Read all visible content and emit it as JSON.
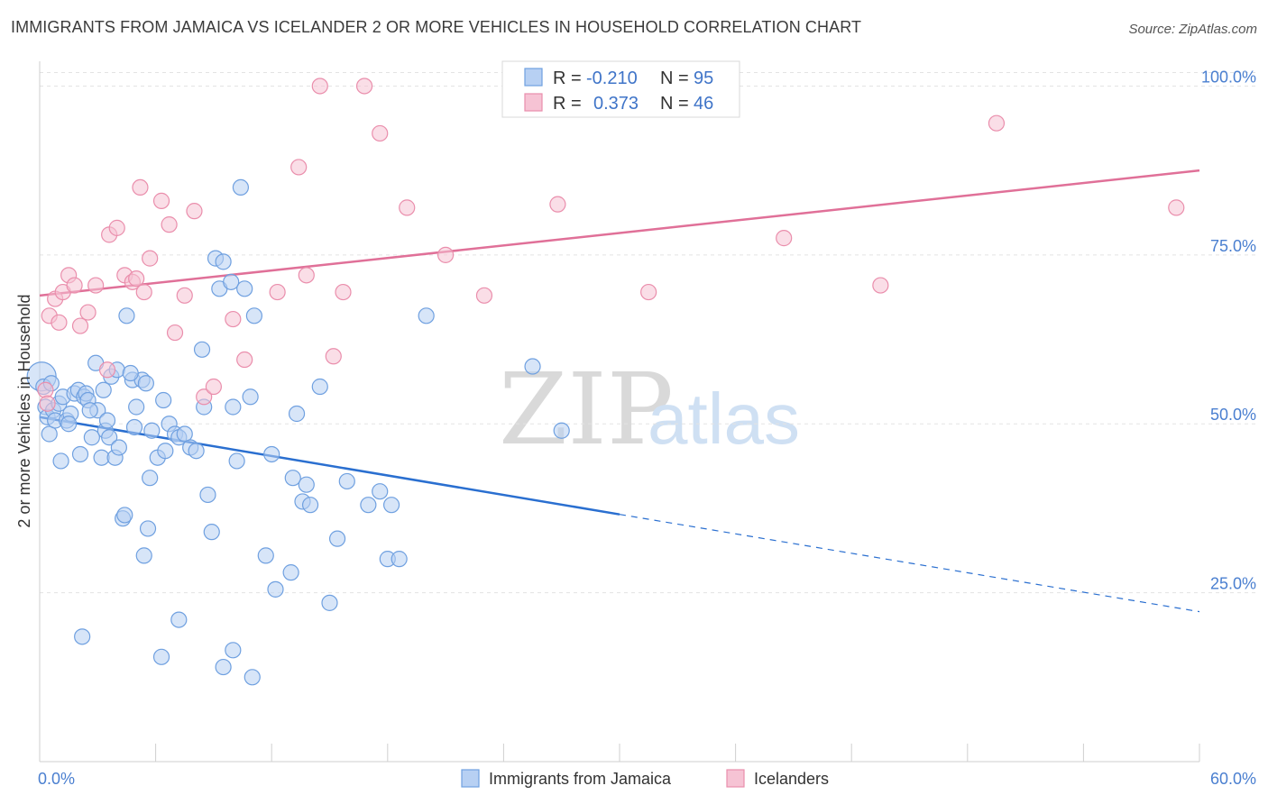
{
  "header": {
    "title": "IMMIGRANTS FROM JAMAICA VS ICELANDER 2 OR MORE VEHICLES IN HOUSEHOLD CORRELATION CHART",
    "source": "Source: ZipAtlas.com"
  },
  "watermark": {
    "zip": "ZIP",
    "atlas": "atlas"
  },
  "chart_data": {
    "type": "scatter",
    "title": "IMMIGRANTS FROM JAMAICA VS ICELANDER 2 OR MORE VEHICLES IN HOUSEHOLD CORRELATION CHART",
    "ylabel": "2 or more Vehicles in Household",
    "xlim": [
      0,
      60
    ],
    "ylim": [
      0,
      105
    ],
    "x_tick_labels": [
      "0.0%",
      "60.0%"
    ],
    "y_ticks": [
      25,
      50,
      75,
      100
    ],
    "y_tick_labels": [
      "25.0%",
      "50.0%",
      "75.0%",
      "100.0%"
    ],
    "grid": true,
    "legend_position": "top-center",
    "series": [
      {
        "name": "Immigrants from Jamaica",
        "color": "#6fa0e0",
        "fill": "#b7d0f3",
        "line_color": "#2a6fd0",
        "R": "-0.210",
        "N": "95",
        "trend": {
          "x": [
            0,
            30,
            60
          ],
          "y": [
            51,
            36.6,
            22.2
          ],
          "solid_until": 30
        },
        "points": [
          [
            0.1,
            57
          ],
          [
            0.2,
            55.5
          ],
          [
            0.3,
            52.5
          ],
          [
            0.4,
            51
          ],
          [
            0.5,
            48.5
          ],
          [
            0.7,
            52
          ],
          [
            0.8,
            50.5
          ],
          [
            1.0,
            53
          ],
          [
            1.1,
            44.5
          ],
          [
            1.2,
            54
          ],
          [
            1.4,
            50.5
          ],
          [
            1.6,
            51.5
          ],
          [
            1.8,
            54.5
          ],
          [
            2.0,
            55
          ],
          [
            2.1,
            45.5
          ],
          [
            2.3,
            54
          ],
          [
            2.4,
            54.5
          ],
          [
            2.5,
            53.5
          ],
          [
            2.7,
            48
          ],
          [
            2.9,
            59
          ],
          [
            3.0,
            52
          ],
          [
            3.2,
            45
          ],
          [
            3.4,
            49
          ],
          [
            3.5,
            50.5
          ],
          [
            3.6,
            48
          ],
          [
            3.7,
            57
          ],
          [
            3.9,
            45
          ],
          [
            4.0,
            58
          ],
          [
            4.1,
            46.5
          ],
          [
            4.3,
            36
          ],
          [
            4.5,
            66
          ],
          [
            4.8,
            56.5
          ],
          [
            4.9,
            49.5
          ],
          [
            5.0,
            52.5
          ],
          [
            5.3,
            56.5
          ],
          [
            5.5,
            56
          ],
          [
            5.7,
            42
          ],
          [
            5.8,
            49
          ],
          [
            6.1,
            45
          ],
          [
            6.4,
            53.5
          ],
          [
            6.5,
            46
          ],
          [
            6.7,
            50
          ],
          [
            7.0,
            48.5
          ],
          [
            7.2,
            48
          ],
          [
            7.5,
            48.5
          ],
          [
            7.8,
            46.5
          ],
          [
            8.1,
            46
          ],
          [
            8.4,
            61
          ],
          [
            8.5,
            52.5
          ],
          [
            8.7,
            39.5
          ],
          [
            8.9,
            34
          ],
          [
            9.1,
            74.5
          ],
          [
            9.3,
            70
          ],
          [
            9.5,
            74
          ],
          [
            9.9,
            71
          ],
          [
            10.0,
            52.5
          ],
          [
            10.2,
            44.5
          ],
          [
            10.4,
            85
          ],
          [
            10.6,
            70
          ],
          [
            10.9,
            54
          ],
          [
            11.1,
            66
          ],
          [
            11.7,
            30.5
          ],
          [
            12.0,
            45.5
          ],
          [
            12.2,
            25.5
          ],
          [
            13.0,
            28
          ],
          [
            13.1,
            42
          ],
          [
            13.3,
            51.5
          ],
          [
            13.6,
            38.5
          ],
          [
            13.8,
            41
          ],
          [
            14.0,
            38
          ],
          [
            14.5,
            55.5
          ],
          [
            15.0,
            23.5
          ],
          [
            15.4,
            33
          ],
          [
            15.9,
            41.5
          ],
          [
            17.0,
            38
          ],
          [
            17.6,
            40
          ],
          [
            18.0,
            30
          ],
          [
            18.2,
            38
          ],
          [
            18.6,
            30
          ],
          [
            20.0,
            66
          ],
          [
            25.5,
            58.5
          ],
          [
            27.0,
            49
          ],
          [
            6.3,
            15.5
          ],
          [
            7.2,
            21
          ],
          [
            9.5,
            14
          ],
          [
            10.0,
            16.5
          ],
          [
            11.0,
            12.5
          ],
          [
            2.2,
            18.5
          ],
          [
            4.4,
            36.5
          ],
          [
            5.6,
            34.5
          ],
          [
            5.4,
            30.5
          ],
          [
            3.3,
            55
          ],
          [
            2.6,
            52
          ],
          [
            1.5,
            50
          ],
          [
            0.6,
            56
          ],
          [
            4.7,
            57.5
          ]
        ]
      },
      {
        "name": "Icelanders",
        "color": "#ea8eac",
        "fill": "#f6c3d4",
        "line_color": "#e07098",
        "R": "0.373",
        "N": "46",
        "trend": {
          "x": [
            0,
            60
          ],
          "y": [
            69,
            87.5
          ],
          "solid_until": 60
        },
        "points": [
          [
            0.3,
            55
          ],
          [
            0.4,
            53
          ],
          [
            0.5,
            66
          ],
          [
            0.8,
            68.5
          ],
          [
            1.0,
            65
          ],
          [
            1.2,
            69.5
          ],
          [
            1.5,
            72
          ],
          [
            1.8,
            70.5
          ],
          [
            2.1,
            64.5
          ],
          [
            2.5,
            66.5
          ],
          [
            2.9,
            70.5
          ],
          [
            3.5,
            58
          ],
          [
            3.6,
            78
          ],
          [
            4.0,
            79
          ],
          [
            4.4,
            72
          ],
          [
            4.8,
            71
          ],
          [
            5.0,
            71.5
          ],
          [
            5.2,
            85
          ],
          [
            5.4,
            69.5
          ],
          [
            5.7,
            74.5
          ],
          [
            6.3,
            83
          ],
          [
            6.7,
            79.5
          ],
          [
            7.0,
            63.5
          ],
          [
            7.5,
            69
          ],
          [
            8.0,
            81.5
          ],
          [
            8.5,
            54
          ],
          [
            9.0,
            55.5
          ],
          [
            10.0,
            65.5
          ],
          [
            10.6,
            59.5
          ],
          [
            12.3,
            69.5
          ],
          [
            13.4,
            88
          ],
          [
            13.8,
            72
          ],
          [
            14.5,
            100
          ],
          [
            15.2,
            60
          ],
          [
            15.7,
            69.5
          ],
          [
            16.8,
            100
          ],
          [
            17.6,
            93
          ],
          [
            19.0,
            82
          ],
          [
            21.0,
            75
          ],
          [
            23.0,
            69
          ],
          [
            26.8,
            82.5
          ],
          [
            31.5,
            69.5
          ],
          [
            38.5,
            77.5
          ],
          [
            43.5,
            70.5
          ],
          [
            49.5,
            94.5
          ],
          [
            58.8,
            82
          ]
        ]
      }
    ]
  }
}
